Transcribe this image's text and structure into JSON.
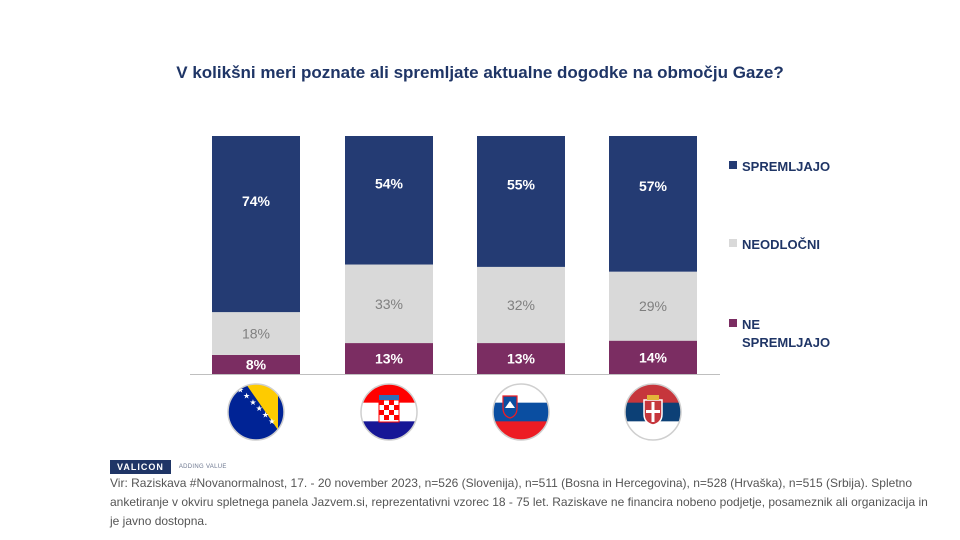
{
  "chart_data": {
    "type": "bar",
    "stacked": true,
    "title": "V kolikšni meri poznate ali spremljate aktualne dogodke na območju Gaze?",
    "categories": [
      "Bosna in Hercegovina",
      "Hrvaška",
      "Slovenija",
      "Srbija"
    ],
    "category_icons": [
      "flag-bosnia-icon",
      "flag-croatia-icon",
      "flag-slovenia-icon",
      "flag-serbia-icon"
    ],
    "series": [
      {
        "name": "NE SPREMLJAJO",
        "color": "#7b2d62",
        "label_color": "#ffffff",
        "values": [
          8,
          13,
          13,
          14
        ]
      },
      {
        "name": "NEODLOČNI",
        "color": "#d9d9d9",
        "label_color": "#7f7f7f",
        "values": [
          18,
          33,
          32,
          29
        ]
      },
      {
        "name": "SPREMLJAJO",
        "color": "#243b73",
        "label_color": "#ffffff",
        "values": [
          74,
          54,
          55,
          57
        ]
      }
    ],
    "value_suffix": "%",
    "legend_position": "right",
    "grid": false
  },
  "legend": [
    {
      "name": "SPREMLJAJO",
      "color": "#243b73"
    },
    {
      "name": "NEODLOČNI",
      "color": "#d9d9d9"
    },
    {
      "name": "NE SPREMLJAJO",
      "color": "#7b2d62"
    }
  ],
  "footer": {
    "logo": "VALICON",
    "tagline": "ADDING VALUE",
    "source": "Vir: Raziskava #Novanormalnost, 17. - 20 november 2023, n=526 (Slovenija), n=511 (Bosna in Hercegovina), n=528 (Hrvaška), n=515 (Srbija). Spletno anketiranje v okviru spletnega panela Jazvem.si, reprezentativni vzorec 18 - 75 let. Raziskave ne financira nobeno podjetje, posameznik ali organizacija in je javno dostopna."
  }
}
